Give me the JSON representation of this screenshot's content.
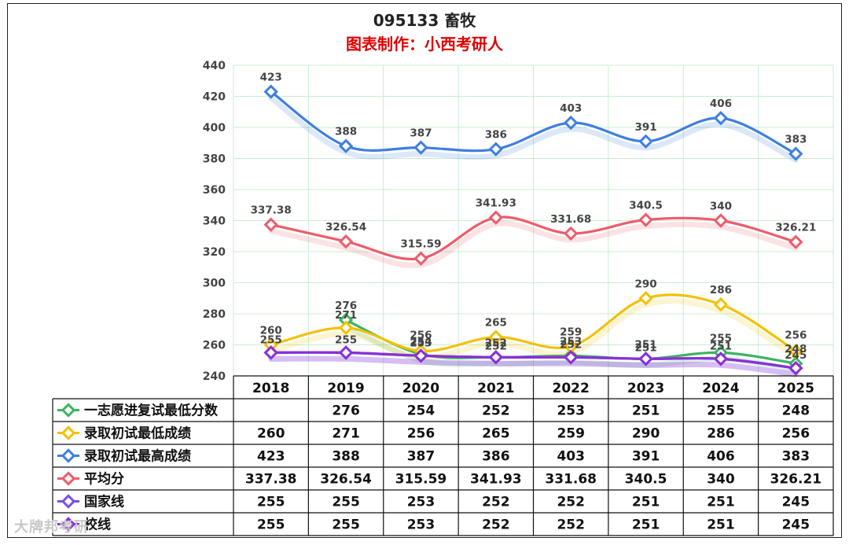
{
  "title": "095133 畜牧",
  "subtitle": "图表制作：小西考研人",
  "watermark": "大牌邦考研",
  "chart_data": {
    "type": "line",
    "categories": [
      "2018",
      "2019",
      "2020",
      "2021",
      "2022",
      "2023",
      "2024",
      "2025"
    ],
    "ylim": [
      240,
      440
    ],
    "yticks": [
      240,
      260,
      280,
      300,
      320,
      340,
      360,
      380,
      400,
      420,
      440
    ],
    "grid": true,
    "legend_placement": "bottom-table",
    "series": [
      {
        "name": "一志愿进复试最低分数",
        "color": "#3cb460",
        "values": [
          null,
          276,
          254,
          252,
          253,
          251,
          255,
          248
        ],
        "labels": [
          "",
          "276",
          "254",
          "252",
          "253",
          "251",
          "255",
          "248"
        ]
      },
      {
        "name": "录取初试最低成绩",
        "color": "#f5c000",
        "values": [
          260,
          271,
          256,
          265,
          259,
          290,
          286,
          256
        ],
        "labels": [
          "260",
          "271",
          "256",
          "265",
          "259",
          "290",
          "286",
          "256"
        ]
      },
      {
        "name": "录取初试最高成绩",
        "color": "#3f7fe0",
        "values": [
          423,
          388,
          387,
          386,
          403,
          391,
          406,
          383
        ],
        "labels": [
          "423",
          "388",
          "387",
          "386",
          "403",
          "391",
          "406",
          "383"
        ]
      },
      {
        "name": "平均分",
        "color": "#ee5c6a",
        "values": [
          337.38,
          326.54,
          315.59,
          341.93,
          331.68,
          340.5,
          340,
          326.21
        ],
        "labels": [
          "337.38",
          "326.54",
          "315.59",
          "341.93",
          "331.68",
          "340.5",
          "340",
          "326.21"
        ]
      },
      {
        "name": "国家线",
        "color": "#7a4fe8",
        "values": [
          255,
          255,
          253,
          252,
          252,
          251,
          251,
          245
        ],
        "labels": [
          "255",
          "255",
          "253",
          "252",
          "252",
          "251",
          "251",
          "245"
        ]
      },
      {
        "name": "校线",
        "color": "#8a2fd8",
        "values": [
          255,
          255,
          253,
          252,
          252,
          251,
          251,
          245
        ],
        "labels": [
          "255",
          "255",
          "253",
          "252",
          "252",
          "251",
          "251",
          "245"
        ]
      }
    ]
  }
}
